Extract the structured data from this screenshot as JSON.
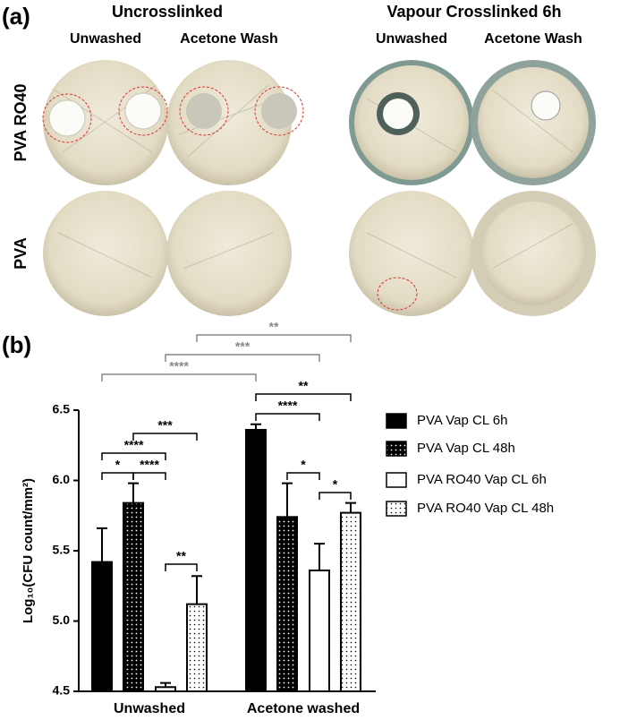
{
  "panel_a": {
    "label": "(a)",
    "groups": [
      "Uncrosslinked",
      "Vapour Crosslinked 6h"
    ],
    "columns": [
      "Unwashed",
      "Acetone Wash",
      "Unwashed",
      "Acetone Wash"
    ],
    "rows": [
      "PVA RO40",
      "PVA"
    ]
  },
  "chart_data": {
    "type": "bar",
    "panel_label": "(b)",
    "ylabel": "Log₁₀(CFU count/mm²)",
    "categories": [
      "Unwashed",
      "Acetone washed"
    ],
    "series": [
      {
        "name": "PVA Vap CL 6h",
        "color": "#000000",
        "pattern": "solid",
        "values": [
          5.42,
          6.36
        ],
        "errors": [
          0.24,
          0.04
        ]
      },
      {
        "name": "PVA Vap CL 48h",
        "color": "#000000",
        "pattern": "dots",
        "values": [
          5.84,
          5.74
        ],
        "errors": [
          0.14,
          0.24
        ]
      },
      {
        "name": "PVA RO40 Vap CL 6h",
        "color": "#ffffff",
        "pattern": "solid",
        "values": [
          4.53,
          5.36
        ],
        "errors": [
          0.03,
          0.19
        ]
      },
      {
        "name": "PVA RO40 Vap CL 48h",
        "color": "#ffffff",
        "pattern": "dots",
        "values": [
          5.12,
          5.77
        ],
        "errors": [
          0.2,
          0.07
        ]
      }
    ],
    "ylim": [
      4.5,
      6.5
    ],
    "yticks": [
      4.5,
      {
        "value": 5,
        "label": "5.0"
      },
      5.5,
      {
        "value": 6,
        "label": "6.0"
      },
      6.5
    ],
    "significance": [
      {
        "label": "**",
        "color": "#888888"
      },
      {
        "label": "***",
        "color": "#888888"
      },
      {
        "label": "****",
        "color": "#888888"
      },
      {
        "label": "**",
        "color": "#000000"
      },
      {
        "label": "****",
        "color": "#000000"
      },
      {
        "label": "***",
        "color": "#000000"
      },
      {
        "label": "****",
        "color": "#000000"
      },
      {
        "label": "*",
        "color": "#000000"
      },
      {
        "label": "****",
        "color": "#000000"
      },
      {
        "label": "*",
        "color": "#000000"
      },
      {
        "label": "**",
        "color": "#000000"
      },
      {
        "label": "*",
        "color": "#000000"
      }
    ]
  }
}
